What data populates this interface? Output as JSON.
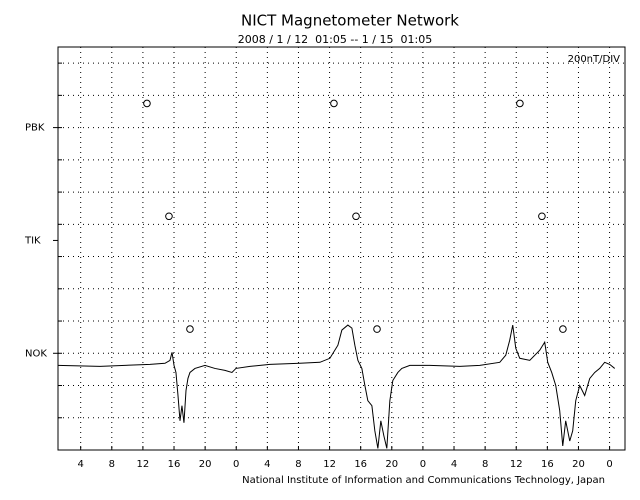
{
  "chart_data": {
    "type": "line",
    "title": "NICT Magnetometer Network",
    "subtitle": "2008 / 1 / 12  01:05 -- 1 / 15  01:05",
    "scale_label": "200nT/DIV",
    "footer": "National Institute of Information and Communications Technology, Japan",
    "xlim": [
      1.0833,
      73.0833
    ],
    "xticks": [
      4,
      8,
      12,
      16,
      20,
      {
        "value": 24,
        "label": "0"
      },
      {
        "value": 28,
        "label": "4"
      },
      {
        "value": 32,
        "label": "8"
      },
      {
        "value": 36,
        "label": "12"
      },
      {
        "value": 40,
        "label": "16"
      },
      {
        "value": 44,
        "label": "20"
      },
      {
        "value": 48,
        "label": "0"
      },
      {
        "value": 52,
        "label": "4"
      },
      {
        "value": 56,
        "label": "8"
      },
      {
        "value": 60,
        "label": "12"
      },
      {
        "value": 64,
        "label": "16"
      },
      {
        "value": 68,
        "label": "20"
      },
      {
        "value": 72,
        "label": "0"
      }
    ],
    "ylim": [
      -600,
      1900
    ],
    "yticks": [
      {
        "value": 0,
        "label": "NOK"
      },
      {
        "value": 700,
        "label": "TIK"
      },
      {
        "value": 1400,
        "label": "PBK"
      }
    ],
    "ygrid": [
      -400,
      -200,
      0,
      200,
      400,
      600,
      800,
      1000,
      1200,
      1400,
      1600,
      1800
    ],
    "grid": true,
    "series": [
      {
        "color": "#000000",
        "x": [
          1.08,
          6.48,
          9.69,
          12.91,
          14.84,
          15.48,
          15.74,
          16.0,
          16.25,
          16.51,
          16.77,
          17.02,
          17.28,
          17.54,
          17.79,
          18.05,
          18.69,
          19.98,
          21.26,
          22.55,
          23.45,
          23.96,
          25.76,
          28.33,
          32.19,
          34.76,
          36.04,
          37.07,
          37.58,
          38.35,
          38.87,
          39.25,
          39.64,
          40.15,
          40.54,
          40.92,
          41.44,
          41.82,
          42.21,
          42.59,
          42.98,
          43.36,
          43.75,
          44.13,
          44.78,
          45.29,
          46.32,
          48.89,
          52.74,
          55.31,
          57.88,
          58.65,
          59.16,
          59.55,
          59.94,
          60.45,
          61.74,
          63.02,
          63.66,
          64.05,
          64.56,
          65.08,
          65.59,
          65.98,
          66.36,
          66.88,
          67.26,
          67.65,
          68.16,
          68.8,
          69.45,
          70.09,
          70.73,
          71.37,
          72.02,
          72.66
        ],
        "values": [
          -75,
          -81,
          -75,
          -69,
          -62,
          -44,
          6,
          -75,
          -119,
          -262,
          -419,
          -325,
          -431,
          -231,
          -156,
          -119,
          -94,
          -75,
          -94,
          -106,
          -119,
          -94,
          -81,
          -69,
          -62,
          -56,
          -31,
          50,
          144,
          175,
          156,
          50,
          -44,
          -94,
          -200,
          -294,
          -325,
          -481,
          -590,
          -419,
          -512,
          -590,
          -294,
          -169,
          -119,
          -94,
          -75,
          -75,
          -81,
          -75,
          -56,
          -12,
          81,
          175,
          31,
          -31,
          -44,
          19,
          69,
          -56,
          -119,
          -200,
          -356,
          -575,
          -419,
          -544,
          -481,
          -294,
          -200,
          -262,
          -156,
          -119,
          -94,
          -56,
          -69,
          -94
        ]
      }
    ],
    "markers": {
      "x": [
        12.52,
        15.35,
        18.05,
        36.56,
        39.4,
        42.1,
        60.47,
        63.3,
        66.0
      ],
      "y": [
        1550,
        850,
        150,
        1550,
        850,
        150,
        1550,
        850,
        150
      ]
    }
  }
}
